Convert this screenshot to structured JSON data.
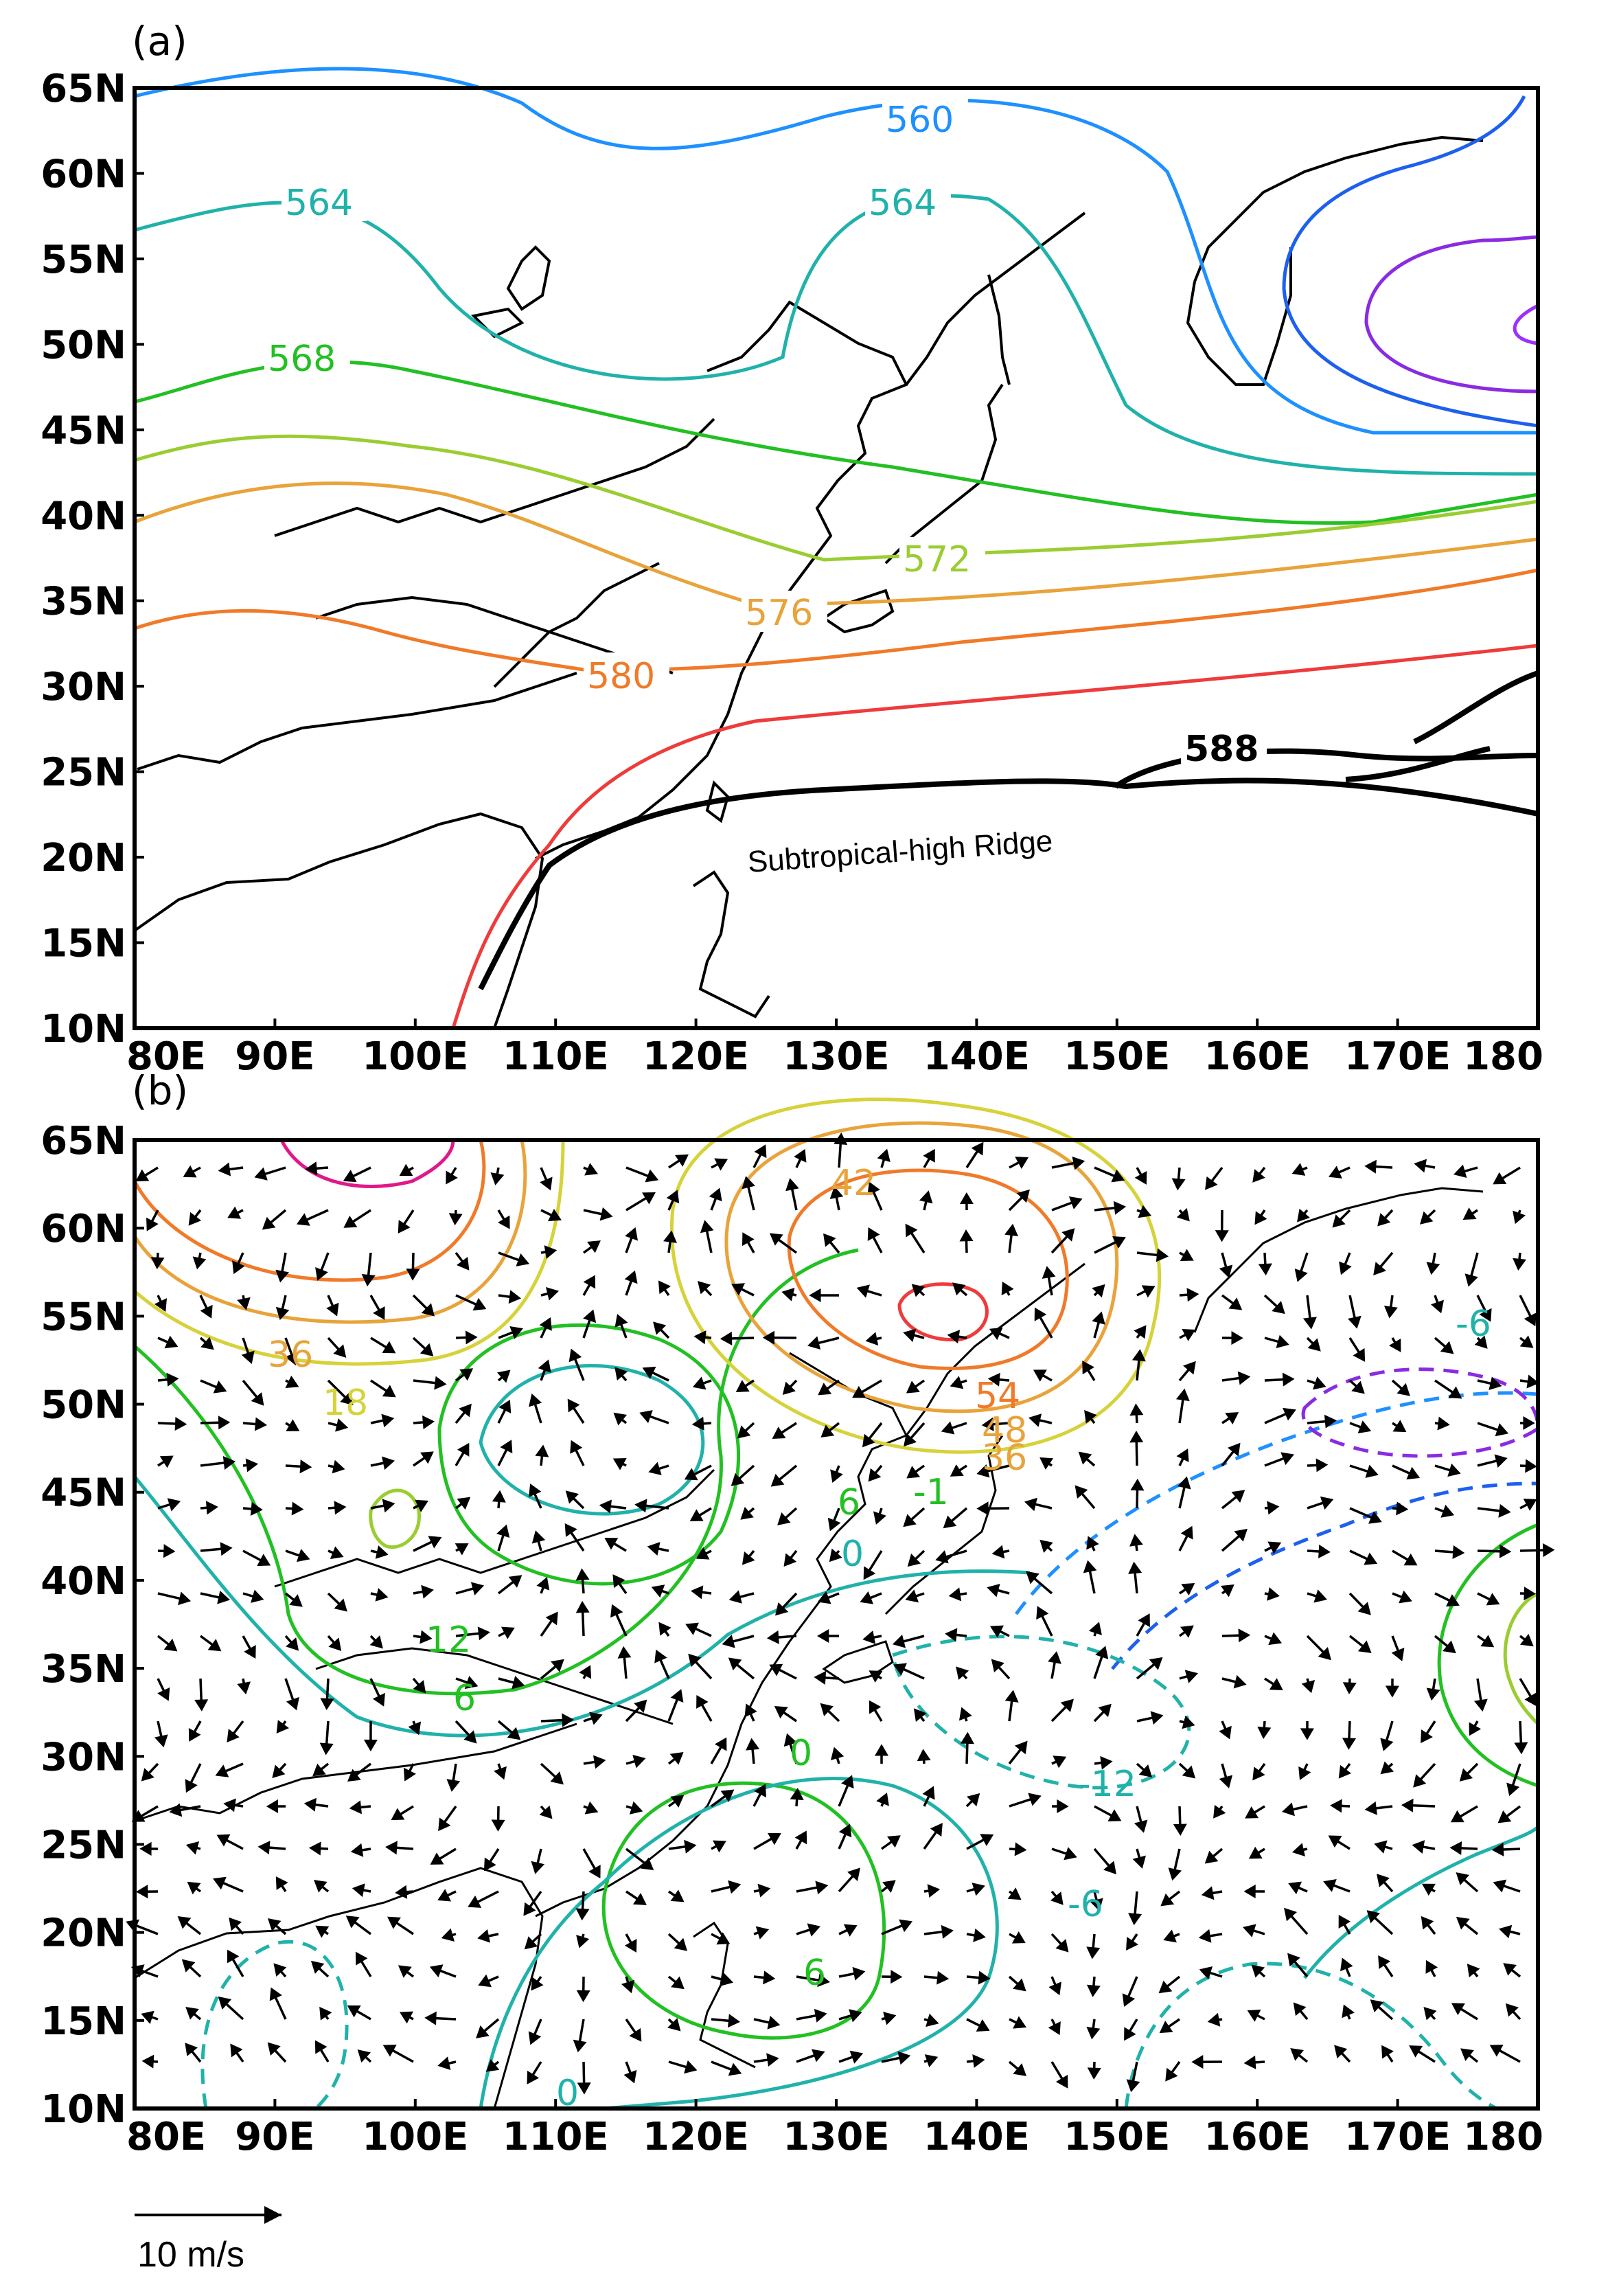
{
  "panels": [
    {
      "label": "(a)",
      "lat_ticks": [
        "65N",
        "60N",
        "55N",
        "50N",
        "45N",
        "40N",
        "35N",
        "30N",
        "25N",
        "20N",
        "15N",
        "10N"
      ],
      "lon_ticks": [
        "80E",
        "90E",
        "100E",
        "110E",
        "120E",
        "130E",
        "140E",
        "150E",
        "160E",
        "170E",
        "180"
      ],
      "contour_labels": [
        "560",
        "564",
        "564",
        "568",
        "572",
        "576",
        "580",
        "588"
      ],
      "annotation": "Subtropical-high Ridge"
    },
    {
      "label": "(b)",
      "lat_ticks": [
        "65N",
        "60N",
        "55N",
        "50N",
        "45N",
        "40N",
        "35N",
        "30N",
        "25N",
        "20N",
        "15N",
        "10N"
      ],
      "lon_ticks": [
        "80E",
        "90E",
        "100E",
        "110E",
        "120E",
        "130E",
        "140E",
        "150E",
        "160E",
        "170E",
        "180"
      ],
      "contour_labels": [
        "42",
        "36",
        "18",
        "54",
        "48",
        "36",
        "-6",
        "-1",
        "6",
        "0",
        "12",
        "6",
        "0",
        "6",
        "0",
        "-12",
        "-6",
        "-6"
      ]
    }
  ],
  "reference_vector": "10 m/s",
  "colors": {
    "c560": "#1e90ff",
    "c564": "#20b2aa",
    "c568": "#22c022",
    "c572": "#9acd32",
    "c576": "#e8a33a",
    "c580": "#f07a28",
    "c584": "#ee3b3b",
    "c588": "#000000",
    "low": "#8a2be2",
    "coast": "#000000"
  }
}
